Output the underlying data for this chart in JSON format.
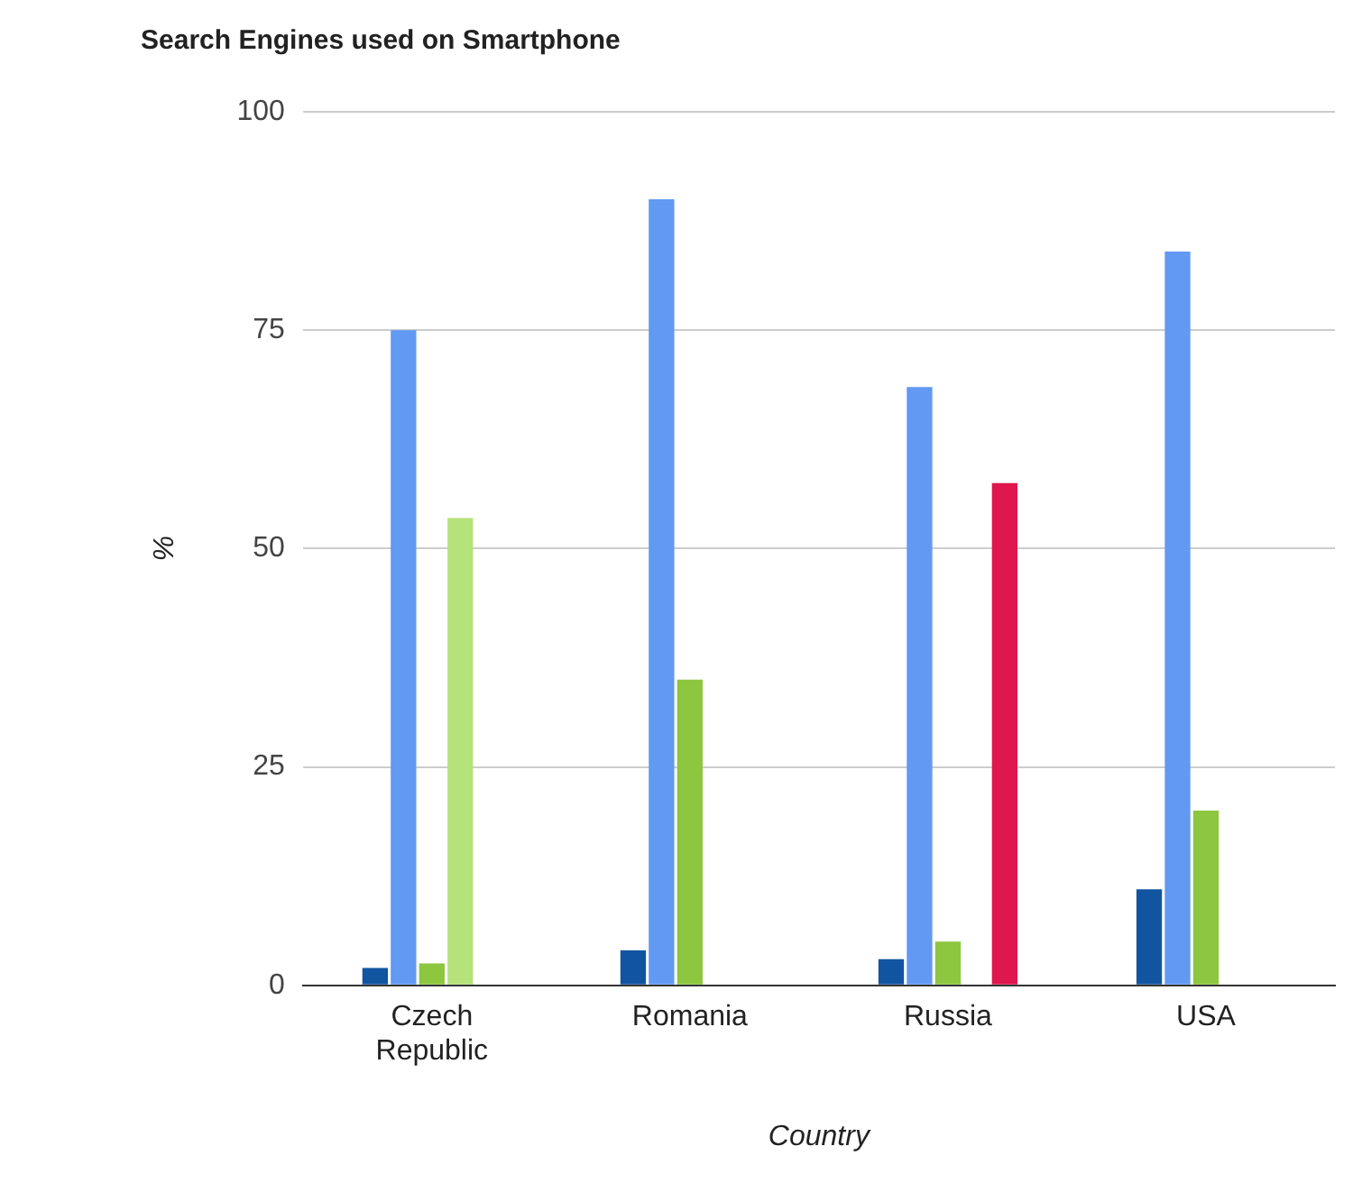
{
  "chart_data": {
    "type": "bar",
    "title": "Search Engines used on Smartphone",
    "xlabel": "Country",
    "ylabel": "%",
    "categories": [
      "Czech Republic",
      "Romania",
      "Russia",
      "USA"
    ],
    "series": [
      {
        "color": "#1155a0",
        "values": [
          2,
          4,
          3,
          11
        ]
      },
      {
        "color": "#6199f3",
        "values": [
          75,
          90,
          68.5,
          84
        ]
      },
      {
        "color": "#8dc63f",
        "values": [
          2.5,
          35,
          5,
          20
        ]
      },
      {
        "color": "#b5e27a",
        "values": [
          53.5,
          null,
          null,
          null
        ]
      },
      {
        "color": "#e0164e",
        "values": [
          null,
          null,
          57.5,
          null
        ]
      }
    ],
    "ylim": [
      0,
      100
    ],
    "yticks": [
      0,
      25,
      50,
      75,
      100
    ],
    "grid": "y",
    "legend": false
  }
}
